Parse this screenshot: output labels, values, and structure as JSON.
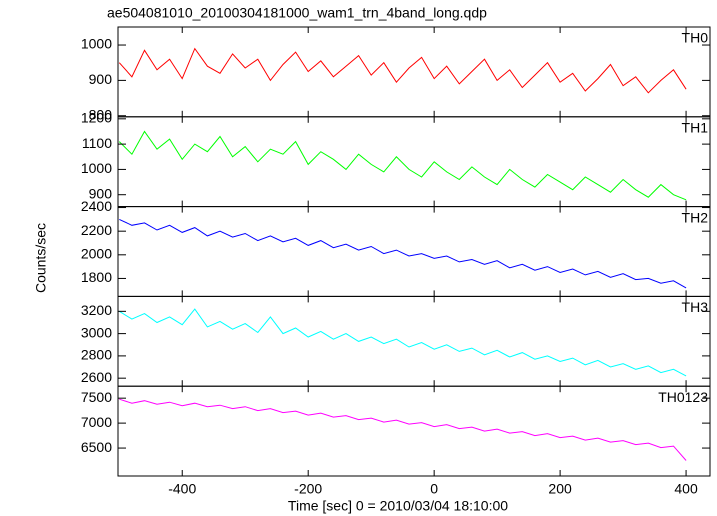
{
  "chart_data": {
    "type": "line",
    "title": "ae504081010_20100304181000_wam1_trn_4band_long.qdp",
    "xlabel": "Time [sec] 0 = 2010/03/04 18:10:00",
    "ylabel": "Counts/sec",
    "xlim": [
      -502,
      438
    ],
    "xticks": [
      -400,
      -200,
      0,
      200,
      400
    ],
    "x": [
      -500,
      -480,
      -460,
      -440,
      -420,
      -400,
      -380,
      -360,
      -340,
      -320,
      -300,
      -280,
      -260,
      -240,
      -220,
      -200,
      -180,
      -160,
      -140,
      -120,
      -100,
      -80,
      -60,
      -40,
      -20,
      0,
      20,
      40,
      60,
      80,
      100,
      120,
      140,
      160,
      180,
      200,
      220,
      240,
      260,
      280,
      300,
      320,
      340,
      360,
      380,
      400
    ],
    "series": [
      {
        "name": "TH0",
        "color": "#ff0000",
        "ylim": [
          797,
          1051
        ],
        "yticks": [
          800,
          900,
          1000
        ],
        "values": [
          950,
          910,
          985,
          930,
          960,
          905,
          990,
          940,
          920,
          975,
          935,
          960,
          900,
          945,
          980,
          925,
          955,
          910,
          940,
          970,
          915,
          950,
          895,
          935,
          965,
          905,
          940,
          890,
          925,
          960,
          900,
          930,
          880,
          915,
          950,
          895,
          920,
          870,
          905,
          945,
          885,
          910,
          865,
          900,
          930,
          875
        ]
      },
      {
        "name": "TH1",
        "color": "#00ff00",
        "ylim": [
          853,
          1208
        ],
        "yticks": [
          900,
          1000,
          1100,
          1200
        ],
        "values": [
          1110,
          1060,
          1150,
          1080,
          1120,
          1040,
          1100,
          1070,
          1130,
          1050,
          1090,
          1030,
          1080,
          1060,
          1110,
          1020,
          1070,
          1040,
          1000,
          1060,
          1020,
          990,
          1050,
          1000,
          970,
          1030,
          990,
          960,
          1010,
          970,
          940,
          1000,
          960,
          930,
          980,
          950,
          920,
          970,
          940,
          910,
          960,
          920,
          890,
          940,
          900,
          880
        ]
      },
      {
        "name": "TH2",
        "color": "#0000ff",
        "ylim": [
          1648,
          2408
        ],
        "yticks": [
          1800,
          2000,
          2200,
          2400
        ],
        "values": [
          2300,
          2250,
          2270,
          2210,
          2250,
          2190,
          2230,
          2160,
          2200,
          2150,
          2180,
          2120,
          2160,
          2110,
          2140,
          2080,
          2120,
          2060,
          2090,
          2040,
          2070,
          2010,
          2040,
          1990,
          2010,
          1970,
          1990,
          1940,
          1960,
          1920,
          1950,
          1890,
          1920,
          1870,
          1900,
          1850,
          1880,
          1830,
          1860,
          1810,
          1840,
          1790,
          1800,
          1760,
          1780,
          1720
        ]
      },
      {
        "name": "TH3",
        "color": "#00ffff",
        "ylim": [
          2528,
          3334
        ],
        "yticks": [
          2600,
          2800,
          3000,
          3200
        ],
        "values": [
          3200,
          3130,
          3180,
          3100,
          3150,
          3080,
          3220,
          3060,
          3110,
          3040,
          3090,
          3010,
          3150,
          3000,
          3050,
          2970,
          3020,
          2950,
          3000,
          2930,
          2970,
          2910,
          2950,
          2880,
          2920,
          2860,
          2900,
          2840,
          2870,
          2810,
          2850,
          2790,
          2830,
          2770,
          2800,
          2750,
          2780,
          2720,
          2760,
          2700,
          2730,
          2680,
          2710,
          2650,
          2680,
          2620
        ]
      },
      {
        "name": "TH0123",
        "color": "#ff00ff",
        "ylim": [
          5940,
          7740
        ],
        "yticks": [
          6500,
          7000,
          7500
        ],
        "values": [
          7480,
          7400,
          7450,
          7380,
          7420,
          7350,
          7400,
          7330,
          7360,
          7290,
          7330,
          7250,
          7290,
          7210,
          7240,
          7160,
          7200,
          7120,
          7150,
          7070,
          7100,
          7020,
          7060,
          6980,
          7010,
          6930,
          6970,
          6890,
          6920,
          6840,
          6880,
          6800,
          6830,
          6750,
          6790,
          6710,
          6740,
          6660,
          6700,
          6620,
          6650,
          6570,
          6600,
          6510,
          6540,
          6250
        ]
      }
    ]
  }
}
